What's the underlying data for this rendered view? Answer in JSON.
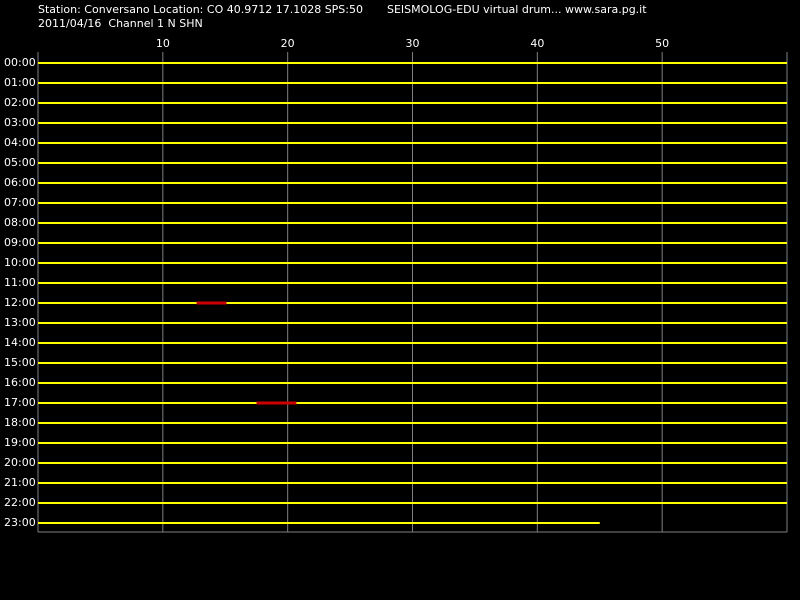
{
  "header": {
    "station": "Station: Conversano Location: CO 40.9712 17.1028 SPS:50",
    "title": "SEISMOLOG-EDU virtual drum... www.sara.pg.it",
    "date": "2011/04/16  Channel 1 N SHN"
  },
  "chart_data": {
    "type": "drum",
    "categories": [
      "00:00",
      "01:00",
      "02:00",
      "03:00",
      "04:00",
      "05:00",
      "06:00",
      "07:00",
      "08:00",
      "09:00",
      "10:00",
      "11:00",
      "12:00",
      "13:00",
      "14:00",
      "15:00",
      "16:00",
      "17:00",
      "18:00",
      "19:00",
      "20:00",
      "21:00",
      "22:00",
      "23:00"
    ],
    "values": [
      60,
      60,
      60,
      60,
      60,
      60,
      60,
      60,
      60,
      60,
      60,
      60,
      60,
      60,
      60,
      60,
      60,
      60,
      60,
      60,
      60,
      60,
      60,
      45
    ],
    "color": "#ffff00",
    "xlim": [
      0,
      60
    ],
    "xticks": [
      10,
      20,
      30,
      40,
      50
    ],
    "grid": true,
    "grid_color": "#808080",
    "events": [
      {
        "row": 12,
        "start": 12.7,
        "end": 15.1,
        "color": "#cc0000"
      },
      {
        "row": 17,
        "start": 17.5,
        "end": 20.7,
        "color": "#cc0000"
      }
    ]
  }
}
